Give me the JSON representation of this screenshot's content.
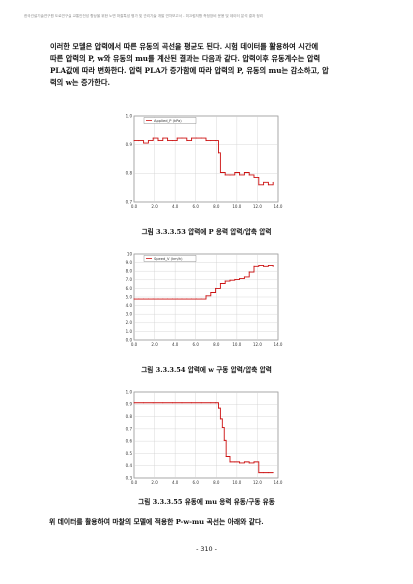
{
  "header": "한국건설기술연구원 도로연구실 교통안전성 향상을 위한 노면 마찰특성 평가 및 관리기술 개발 연차보고서 - 미끄럼저항 측정장비 운용 및 데이터 분석 결과 정리",
  "body_lines": [
    "이러한 모델은 압력에서 따른 유동의 곡선을 평균도 된다. 시험 데이터를 활용하여 시간에",
    "따른 압력의 P, w와 유동의 mu를 계산된 결과는 다음과 같다. 압력이후 유동계수는 압력",
    "PLA값에 따라 변화한다. 압력 PLA가 증가함에 따라 압력의 P, 유동의 mu는 감소하고, 압",
    "력의 w는 증가한다."
  ],
  "figures": [
    {
      "caption": "그림 3.3.3.53 압력에 P 응력 압력/압축 압력",
      "chart_data": {
        "type": "line",
        "legend": "Applied_P (kPa)",
        "x": [
          0,
          5,
          10,
          15,
          20,
          25,
          30,
          35,
          40,
          45,
          50,
          55,
          60,
          65,
          70,
          75,
          80,
          85,
          88,
          90,
          95,
          100,
          105,
          110,
          115,
          120,
          125,
          130,
          135,
          140,
          145
        ],
        "y": [
          0.95,
          0.95,
          0.94,
          0.95,
          0.96,
          0.95,
          0.96,
          0.95,
          0.95,
          0.96,
          0.96,
          0.95,
          0.96,
          0.96,
          0.96,
          0.95,
          0.95,
          0.95,
          0.9,
          0.82,
          0.81,
          0.81,
          0.82,
          0.81,
          0.82,
          0.81,
          0.8,
          0.77,
          0.78,
          0.77,
          0.78
        ],
        "xlim": [
          0,
          150
        ],
        "ylim": [
          0.7,
          1.05
        ],
        "xticks": [
          "0.0",
          "2.0",
          "4.0",
          "6.0",
          "8.0",
          "10.0",
          "12.0",
          "14.0"
        ],
        "yticks": [
          "1.0",
          "0.9",
          "0.8",
          "0.7"
        ],
        "xlabel": "",
        "ylabel": "",
        "color": "#cc1111"
      }
    },
    {
      "caption": "그림 3.3.3.54 압력에 w 구동 압력/압축 압력",
      "chart_data": {
        "type": "line",
        "legend": "Speed_V (km/h)",
        "x": [
          0,
          5,
          10,
          15,
          20,
          25,
          30,
          35,
          40,
          45,
          50,
          55,
          60,
          65,
          70,
          75,
          80,
          85,
          90,
          95,
          100,
          105,
          110,
          115,
          120,
          125,
          130,
          135,
          140,
          145
        ],
        "y": [
          5.0,
          5.0,
          5.0,
          5.0,
          5.0,
          5.0,
          5.0,
          5.0,
          5.0,
          5.0,
          5.0,
          5.0,
          5.0,
          5.0,
          5.0,
          5.4,
          5.8,
          6.3,
          6.9,
          7.2,
          7.3,
          7.4,
          7.5,
          7.7,
          8.3,
          9.0,
          9.1,
          9.0,
          9.1,
          9.0
        ],
        "xlim": [
          0,
          150
        ],
        "ylim": [
          0,
          10.5
        ],
        "xticks": [
          "0.0",
          "2.0",
          "4.0",
          "6.0",
          "8.0",
          "10.0",
          "12.0",
          "14.0"
        ],
        "yticks": [
          "10",
          "9.0",
          "8.0",
          "7.0",
          "6.0",
          "5.0",
          "4.0",
          "3.0",
          "2.0",
          "1.0",
          "0.0"
        ],
        "xlabel": "",
        "ylabel": "",
        "color": "#cc1111"
      }
    },
    {
      "caption": "그림 3.3.3.55 유동에 mu 응력 유동/구동 유동",
      "chart_data": {
        "type": "line",
        "legend": "",
        "x": [
          0,
          10,
          20,
          30,
          40,
          50,
          60,
          70,
          80,
          85,
          88,
          90,
          92,
          94,
          96,
          100,
          105,
          110,
          115,
          120,
          125,
          130,
          135,
          140,
          145
        ],
        "y": [
          0.95,
          0.95,
          0.95,
          0.95,
          0.95,
          0.95,
          0.95,
          0.95,
          0.95,
          0.95,
          0.9,
          0.8,
          0.72,
          0.6,
          0.45,
          0.4,
          0.4,
          0.39,
          0.4,
          0.39,
          0.4,
          0.3,
          0.3,
          0.3,
          0.3
        ],
        "xlim": [
          0,
          150
        ],
        "ylim": [
          0.25,
          1.05
        ],
        "xticks": [
          "0.0",
          "2.0",
          "4.0",
          "6.0",
          "8.0",
          "10.0",
          "12.0",
          "14.0"
        ],
        "yticks": [
          "1.0",
          "0.9",
          "0.8",
          "0.7",
          "0.6",
          "0.5",
          "0.4",
          "0.3"
        ],
        "xlabel": "",
        "ylabel": "",
        "color": "#cc1111"
      }
    }
  ],
  "closing": "위 데이터를 활용하여 마찰의 모델에 적용한 P-w-mu 곡선는 아래와 같다.",
  "page_number": "- 310 -"
}
